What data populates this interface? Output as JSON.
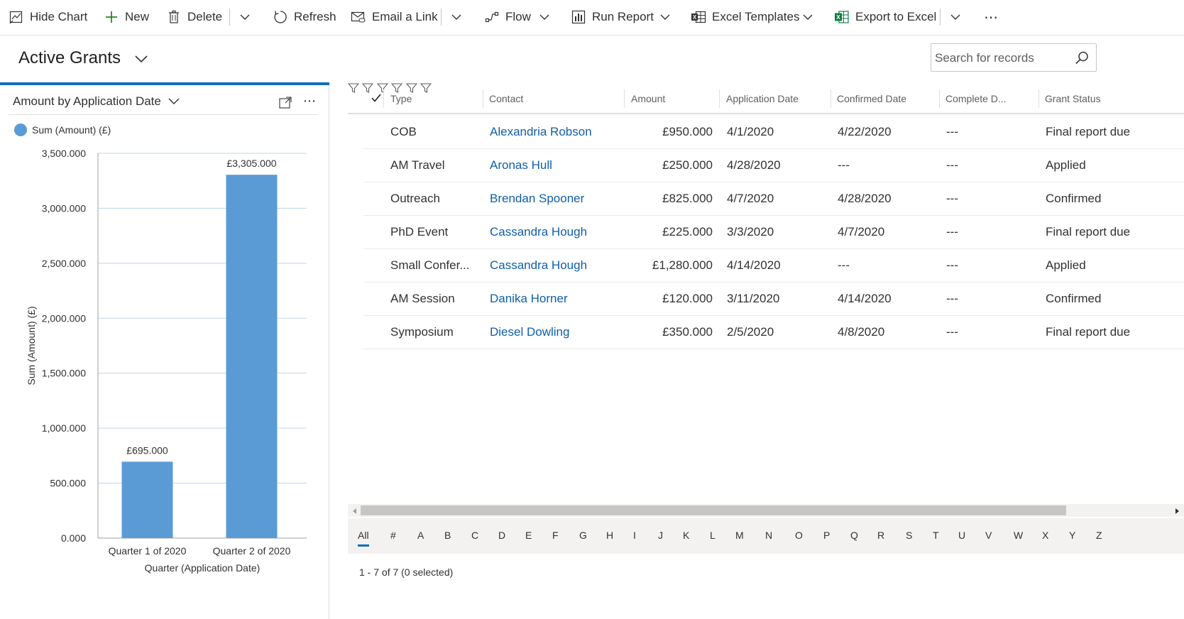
{
  "toolbar": {
    "hide_chart": "Hide Chart",
    "new": "New",
    "delete": "Delete",
    "refresh": "Refresh",
    "email_link": "Email a Link",
    "flow": "Flow",
    "run_report": "Run Report",
    "excel_templates": "Excel Templates",
    "export_excel": "Export to Excel",
    "more": "⋯"
  },
  "view": {
    "title": "Active Grants"
  },
  "search": {
    "placeholder": "Search for records"
  },
  "chart": {
    "panel_title": "Amount by Application Date",
    "more": "⋯"
  },
  "chart_data": {
    "type": "bar",
    "categories": [
      "Quarter 1 of 2020",
      "Quarter 2 of 2020"
    ],
    "series": [
      {
        "name": "Sum (Amount) (£)",
        "values": [
          695,
          3305
        ],
        "labels": [
          "£695.000",
          "£3,305.000"
        ],
        "color": "#5b9bd5"
      }
    ],
    "xlabel": "Quarter (Application Date)",
    "ylabel": "Sum (Amount) (£)",
    "ylim": [
      0,
      3500
    ],
    "yticks": [
      0,
      500,
      1000,
      1500,
      2000,
      2500,
      3000,
      3500
    ],
    "ytick_labels": [
      "0.000",
      "500.000",
      "1,000.000",
      "1,500.000",
      "2,000.000",
      "2,500.000",
      "3,000.000",
      "3,500.000"
    ],
    "grid": true,
    "legend": "top-left"
  },
  "grid": {
    "columns": [
      "Type",
      "Contact",
      "Amount",
      "Application Date",
      "Confirmed Date",
      "Complete D...",
      "Grant Status"
    ],
    "rows": [
      {
        "type": "COB",
        "contact": "Alexandria Robson",
        "amount": "£950.000",
        "app_date": "4/1/2020",
        "confirmed": "4/22/2020",
        "complete": "---",
        "status": "Final report due"
      },
      {
        "type": "AM Travel",
        "contact": "Aronas Hull",
        "amount": "£250.000",
        "app_date": "4/28/2020",
        "confirmed": "---",
        "complete": "---",
        "status": "Applied"
      },
      {
        "type": "Outreach",
        "contact": "Brendan Spooner",
        "amount": "£825.000",
        "app_date": "4/7/2020",
        "confirmed": "4/28/2020",
        "complete": "---",
        "status": "Confirmed"
      },
      {
        "type": "PhD Event",
        "contact": "Cassandra Hough",
        "amount": "£225.000",
        "app_date": "3/3/2020",
        "confirmed": "4/7/2020",
        "complete": "---",
        "status": "Final report due"
      },
      {
        "type": "Small Confer...",
        "contact": "Cassandra Hough",
        "amount": "£1,280.000",
        "app_date": "4/14/2020",
        "confirmed": "---",
        "complete": "---",
        "status": "Applied"
      },
      {
        "type": "AM Session",
        "contact": "Danika Horner",
        "amount": "£120.000",
        "app_date": "3/11/2020",
        "confirmed": "4/14/2020",
        "complete": "---",
        "status": "Confirmed"
      },
      {
        "type": "Symposium",
        "contact": "Diesel Dowling",
        "amount": "£350.000",
        "app_date": "2/5/2020",
        "confirmed": "4/8/2020",
        "complete": "---",
        "status": "Final report due"
      }
    ]
  },
  "jumpbar": [
    "All",
    "#",
    "A",
    "B",
    "C",
    "D",
    "E",
    "F",
    "G",
    "H",
    "I",
    "J",
    "K",
    "L",
    "M",
    "N",
    "O",
    "P",
    "Q",
    "R",
    "S",
    "T",
    "U",
    "V",
    "W",
    "X",
    "Y",
    "Z"
  ],
  "status": "1 - 7 of 7 (0 selected)",
  "colors": {
    "accent": "#0f6cbd",
    "link": "#0f5ea8",
    "bar": "#5b9bd5",
    "gridline": "#bdd7ee",
    "new_icon": "#107c10",
    "excel_icon": "#107c41"
  }
}
